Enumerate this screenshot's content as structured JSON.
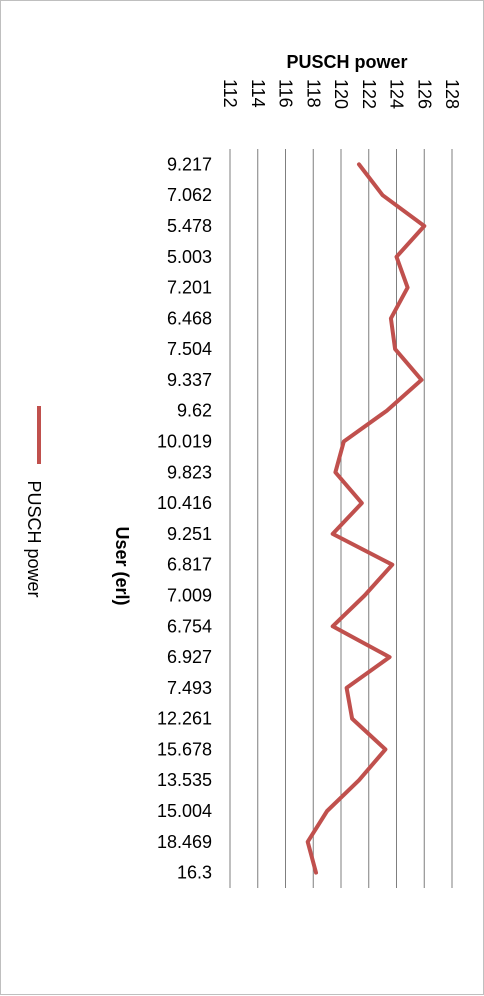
{
  "chart_data": {
    "type": "line",
    "orientation": "rotated-90",
    "title": "PUSCH power",
    "xlabel": "User (erl)",
    "ylabel": "",
    "ylim": [
      112,
      128
    ],
    "y_ticks": [
      "112",
      "114",
      "116",
      "118",
      "120",
      "122",
      "124",
      "126",
      "128"
    ],
    "categories": [
      "9.217",
      "7.062",
      "5.478",
      "5.003",
      "7.201",
      "6.468",
      "7.504",
      "9.337",
      "9.62",
      "10.019",
      "9.823",
      "10.416",
      "9.251",
      "6.817",
      "7.009",
      "6.754",
      "6.927",
      "7.493",
      "12.261",
      "15.678",
      "13.535",
      "15.004",
      "18.469",
      "16.3"
    ],
    "series": [
      {
        "name": "PUSCH power",
        "color": "#c0504d",
        "values": [
          121.3,
          123.0,
          126.0,
          124.0,
          124.8,
          123.6,
          123.9,
          125.8,
          123.3,
          120.2,
          119.6,
          121.5,
          119.4,
          123.7,
          121.7,
          119.4,
          123.5,
          120.4,
          120.8,
          123.2,
          121.3,
          119.0,
          117.6,
          118.2
        ]
      }
    ],
    "legend": {
      "position": "left",
      "label": "PUSCH power"
    },
    "grid": true
  }
}
